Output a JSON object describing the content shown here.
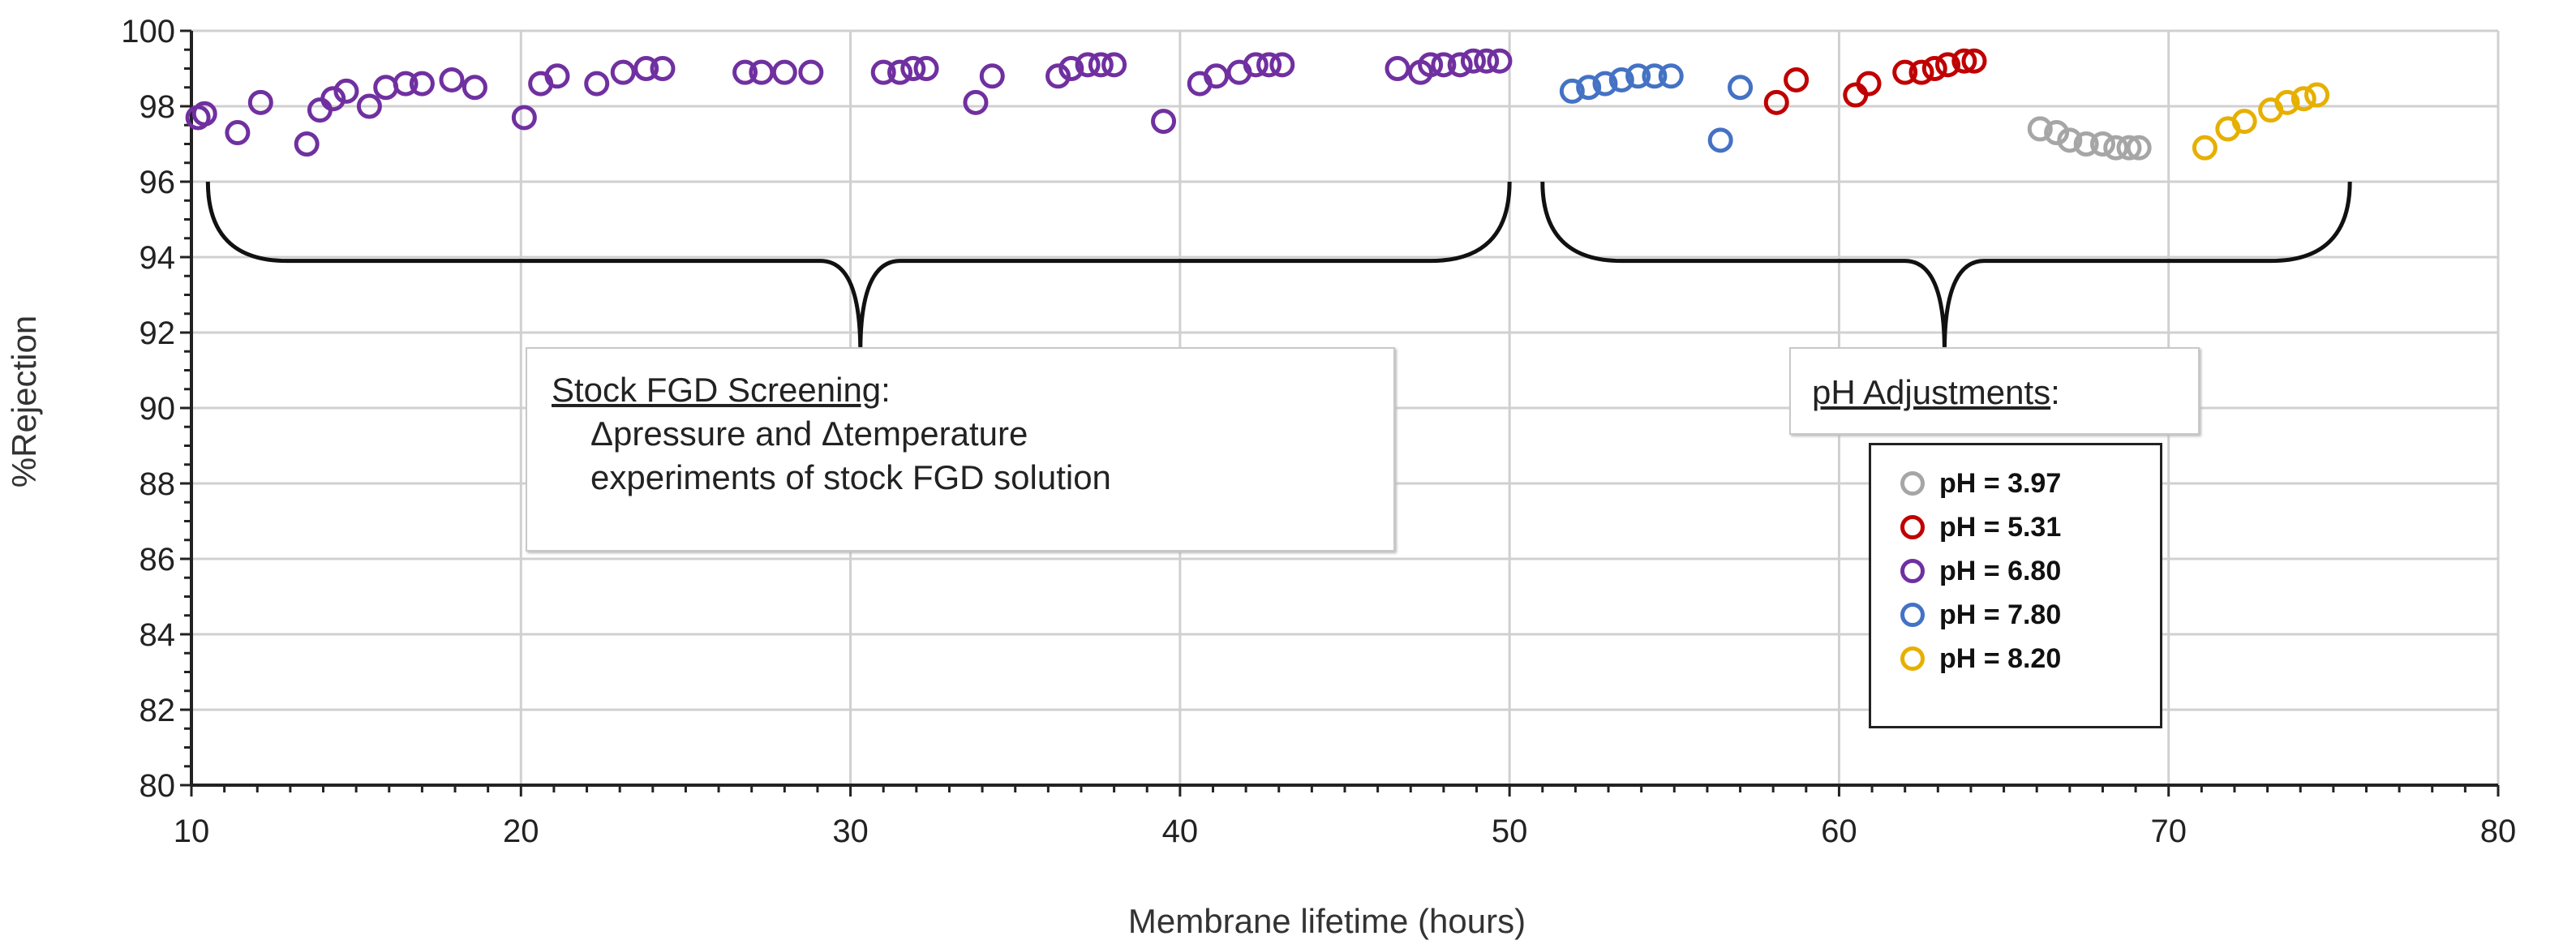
{
  "chart_data": {
    "type": "scatter",
    "xlabel": "Membrane lifetime (hours)",
    "ylabel": "%Rejection",
    "xlim": [
      10,
      80
    ],
    "ylim": [
      80,
      100
    ],
    "x_ticks": [
      "10",
      "20",
      "30",
      "40",
      "50",
      "60",
      "70",
      "80"
    ],
    "y_ticks": [
      "80",
      "82",
      "84",
      "86",
      "88",
      "90",
      "92",
      "94",
      "96",
      "98",
      "100"
    ],
    "grid": true,
    "series": [
      {
        "name": "pH = 6.80",
        "color": "#7030A0",
        "points": [
          [
            10.2,
            97.7
          ],
          [
            10.4,
            97.8
          ],
          [
            11.4,
            97.3
          ],
          [
            12.1,
            98.1
          ],
          [
            13.5,
            97.0
          ],
          [
            13.9,
            97.9
          ],
          [
            14.3,
            98.2
          ],
          [
            14.7,
            98.4
          ],
          [
            15.4,
            98.0
          ],
          [
            15.9,
            98.5
          ],
          [
            16.5,
            98.6
          ],
          [
            17.0,
            98.6
          ],
          [
            17.9,
            98.7
          ],
          [
            18.6,
            98.5
          ],
          [
            20.1,
            97.7
          ],
          [
            20.6,
            98.6
          ],
          [
            21.1,
            98.8
          ],
          [
            22.3,
            98.6
          ],
          [
            23.1,
            98.9
          ],
          [
            23.8,
            99.0
          ],
          [
            24.3,
            99.0
          ],
          [
            26.8,
            98.9
          ],
          [
            27.3,
            98.9
          ],
          [
            28.0,
            98.9
          ],
          [
            28.8,
            98.9
          ],
          [
            31.0,
            98.9
          ],
          [
            31.5,
            98.9
          ],
          [
            31.9,
            99.0
          ],
          [
            32.3,
            99.0
          ],
          [
            33.8,
            98.1
          ],
          [
            34.3,
            98.8
          ],
          [
            36.3,
            98.8
          ],
          [
            36.7,
            99.0
          ],
          [
            37.2,
            99.1
          ],
          [
            37.6,
            99.1
          ],
          [
            38.0,
            99.1
          ],
          [
            39.5,
            97.6
          ],
          [
            40.6,
            98.6
          ],
          [
            41.1,
            98.8
          ],
          [
            41.8,
            98.9
          ],
          [
            42.3,
            99.1
          ],
          [
            42.7,
            99.1
          ],
          [
            43.1,
            99.1
          ],
          [
            46.6,
            99.0
          ],
          [
            47.3,
            98.9
          ],
          [
            47.6,
            99.1
          ],
          [
            48.0,
            99.1
          ],
          [
            48.5,
            99.1
          ],
          [
            48.9,
            99.2
          ],
          [
            49.3,
            99.2
          ],
          [
            49.7,
            99.2
          ]
        ]
      },
      {
        "name": "pH = 7.80",
        "color": "#4472C4",
        "points": [
          [
            51.9,
            98.4
          ],
          [
            52.4,
            98.5
          ],
          [
            52.9,
            98.6
          ],
          [
            53.4,
            98.7
          ],
          [
            53.9,
            98.8
          ],
          [
            54.4,
            98.8
          ],
          [
            54.9,
            98.8
          ],
          [
            56.4,
            97.1
          ],
          [
            57.0,
            98.5
          ]
        ]
      },
      {
        "name": "pH = 5.31",
        "color": "#C00000",
        "points": [
          [
            58.1,
            98.1
          ],
          [
            58.7,
            98.7
          ],
          [
            60.5,
            98.3
          ],
          [
            60.9,
            98.6
          ],
          [
            62.0,
            98.9
          ],
          [
            62.5,
            98.9
          ],
          [
            62.9,
            99.0
          ],
          [
            63.3,
            99.1
          ],
          [
            63.8,
            99.2
          ],
          [
            64.1,
            99.2
          ]
        ]
      },
      {
        "name": "pH = 3.97",
        "color": "#A6A6A6",
        "points": [
          [
            66.1,
            97.4
          ],
          [
            66.6,
            97.3
          ],
          [
            67.0,
            97.1
          ],
          [
            67.5,
            97.0
          ],
          [
            68.0,
            97.0
          ],
          [
            68.4,
            96.9
          ],
          [
            68.8,
            96.9
          ],
          [
            69.1,
            96.9
          ]
        ]
      },
      {
        "name": "pH = 8.20",
        "color": "#E6B000",
        "points": [
          [
            71.1,
            96.9
          ],
          [
            71.8,
            97.4
          ],
          [
            72.3,
            97.6
          ],
          [
            73.1,
            97.9
          ],
          [
            73.6,
            98.1
          ],
          [
            74.1,
            98.2
          ],
          [
            74.5,
            98.3
          ]
        ]
      }
    ],
    "annotations": [
      {
        "title": "Stock FGD Screening",
        "title_suffix": ":",
        "lines": [
          "Δpressure and Δtemperature",
          "experiments of stock FGD solution"
        ],
        "brace_range_x": [
          10.5,
          50
        ],
        "brace_y": 96,
        "brace_base_y": 93.9,
        "brace_point": [
          30.3,
          91.5
        ]
      },
      {
        "title": "pH Adjustments",
        "title_suffix": ":",
        "lines": [],
        "brace_range_x": [
          51,
          75.5
        ],
        "brace_y": 96,
        "brace_base_y": 93.9,
        "brace_point": [
          63.2,
          91.5
        ]
      }
    ],
    "legend": {
      "position": "center-right",
      "entries": [
        {
          "label": "pH = 3.97",
          "color": "#A6A6A6"
        },
        {
          "label": "pH = 5.31",
          "color": "#C00000"
        },
        {
          "label": "pH = 6.80",
          "color": "#7030A0"
        },
        {
          "label": "pH = 7.80",
          "color": "#4472C4"
        },
        {
          "label": "pH = 8.20",
          "color": "#E6B000"
        }
      ]
    }
  }
}
